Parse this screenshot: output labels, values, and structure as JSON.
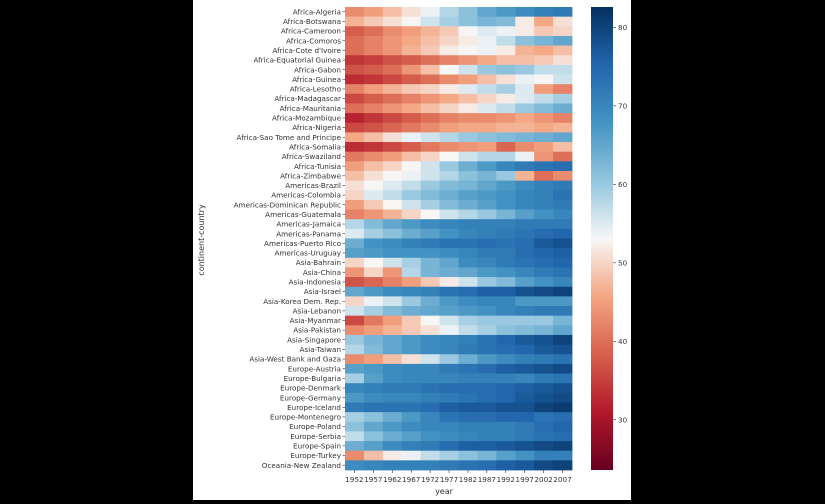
{
  "chart_data": {
    "type": "heatmap",
    "title": "",
    "xlabel": "year",
    "ylabel": "continent-country",
    "x": [
      "1952",
      "1957",
      "1962",
      "1967",
      "1972",
      "1977",
      "1982",
      "1987",
      "1992",
      "1997",
      "2002",
      "2007"
    ],
    "y_tick_labels": [
      "Africa-Algeria",
      "Africa-Botswana",
      "Africa-Cameroon",
      "Africa-Comoros",
      "Africa-Cote d'Ivoire",
      "Africa-Equatorial Guinea",
      "Africa-Gabon",
      "Africa-Guinea",
      "Africa-Lesotho",
      "Africa-Madagascar",
      "Africa-Mauritania",
      "Africa-Mozambique",
      "Africa-Nigeria",
      "Africa-Sao Tome and Principe",
      "Africa-Somalia",
      "Africa-Swaziland",
      "Africa-Tunisia",
      "Africa-Zimbabwe",
      "Americas-Brazil",
      "Americas-Colombia",
      "Americas-Dominican Republic",
      "Americas-Guatemala",
      "Americas-Jamaica",
      "Americas-Panama",
      "Americas-Puerto Rico",
      "Americas-Uruguay",
      "Asia-Bahrain",
      "Asia-China",
      "Asia-Indonesia",
      "Asia-Israel",
      "Asia-Korea Dem. Rep.",
      "Asia-Lebanon",
      "Asia-Myanmar",
      "Asia-Pakistan",
      "Asia-Singapore",
      "Asia-Taiwan",
      "Asia-West Bank and Gaza",
      "Europe-Austria",
      "Europe-Bulgaria",
      "Europe-Denmark",
      "Europe-Germany",
      "Europe-Iceland",
      "Europe-Montenegro",
      "Europe-Poland",
      "Europe-Serbia",
      "Europe-Spain",
      "Europe-Turkey",
      "Oceania-New Zealand"
    ],
    "rows": [
      {
        "label": "Africa-Algeria",
        "values": [
          43,
          45,
          48,
          51,
          54,
          58,
          61,
          65,
          67,
          69,
          71,
          72
        ]
      },
      {
        "label": "Africa-Botswana",
        "values": [
          47,
          49,
          51,
          53,
          56,
          59,
          61,
          63,
          62,
          52,
          46,
          51
        ]
      },
      {
        "label": "Africa-Cameroon",
        "values": [
          38,
          40,
          43,
          45,
          47,
          49,
          53,
          55,
          54,
          52,
          49,
          50
        ]
      },
      {
        "label": "Africa-Comoros",
        "values": [
          40,
          42,
          44,
          46,
          48,
          50,
          52,
          54,
          57,
          61,
          63,
          65
        ]
      },
      {
        "label": "Africa-Cote d'Ivoire",
        "values": [
          40,
          42,
          44,
          47,
          49,
          52,
          53,
          54,
          52,
          47,
          46,
          48
        ]
      },
      {
        "label": "Africa-Equatorial Guinea",
        "values": [
          34,
          35,
          37,
          38,
          40,
          42,
          44,
          46,
          48,
          48,
          49,
          51
        ]
      },
      {
        "label": "Africa-Gabon",
        "values": [
          37,
          38,
          40,
          44,
          48,
          53,
          56,
          60,
          61,
          60,
          57,
          57
        ]
      },
      {
        "label": "Africa-Guinea",
        "values": [
          33,
          34,
          36,
          38,
          40,
          43,
          45,
          48,
          51,
          54,
          53,
          56
        ]
      },
      {
        "label": "Africa-Lesotho",
        "values": [
          42,
          45,
          47,
          49,
          50,
          52,
          55,
          57,
          59,
          55,
          45,
          42
        ]
      },
      {
        "label": "Africa-Madagascar",
        "values": [
          36,
          38,
          40,
          42,
          44,
          46,
          48,
          50,
          52,
          55,
          57,
          59
        ]
      },
      {
        "label": "Africa-Mauritania",
        "values": [
          40,
          42,
          44,
          46,
          48,
          50,
          52,
          55,
          57,
          60,
          62,
          64
        ]
      },
      {
        "label": "Africa-Mozambique",
        "values": [
          32,
          34,
          36,
          38,
          40,
          42,
          43,
          43,
          44,
          46,
          44,
          42
        ]
      },
      {
        "label": "Africa-Nigeria",
        "values": [
          36,
          37,
          39,
          41,
          43,
          45,
          46,
          46,
          47,
          47,
          46,
          47
        ]
      },
      {
        "label": "Africa-Sao Tome and Principe",
        "values": [
          46,
          48,
          51,
          54,
          56,
          58,
          60,
          61,
          62,
          63,
          64,
          65
        ]
      },
      {
        "label": "Africa-Somalia",
        "values": [
          33,
          34,
          36,
          38,
          41,
          43,
          44,
          45,
          39,
          43,
          45,
          48
        ]
      },
      {
        "label": "Africa-Swaziland",
        "values": [
          41,
          43,
          45,
          48,
          50,
          53,
          56,
          58,
          58,
          54,
          44,
          40
        ]
      },
      {
        "label": "Africa-Tunisia",
        "values": [
          45,
          48,
          50,
          53,
          56,
          60,
          64,
          67,
          70,
          72,
          73,
          74
        ]
      },
      {
        "label": "Africa-Zimbabwe",
        "values": [
          48,
          51,
          53,
          54,
          56,
          58,
          61,
          63,
          60,
          47,
          40,
          43
        ]
      },
      {
        "label": "Americas-Brazil",
        "values": [
          51,
          53,
          55,
          57,
          60,
          62,
          63,
          65,
          67,
          69,
          71,
          72
        ]
      },
      {
        "label": "Americas-Colombia",
        "values": [
          50,
          55,
          57,
          60,
          62,
          64,
          66,
          67,
          68,
          70,
          71,
          73
        ]
      },
      {
        "label": "Americas-Dominican Republic",
        "values": [
          45,
          49,
          53,
          56,
          59,
          62,
          64,
          66,
          68,
          70,
          71,
          72
        ]
      },
      {
        "label": "Americas-Guatemala",
        "values": [
          42,
          44,
          47,
          50,
          53,
          56,
          58,
          60,
          63,
          66,
          68,
          70
        ]
      },
      {
        "label": "Americas-Jamaica",
        "values": [
          58,
          62,
          65,
          67,
          69,
          70,
          71,
          71,
          71,
          72,
          72,
          72
        ]
      },
      {
        "label": "Americas-Panama",
        "values": [
          55,
          59,
          61,
          64,
          66,
          68,
          70,
          71,
          72,
          73,
          74,
          75
        ]
      },
      {
        "label": "Americas-Puerto Rico",
        "values": [
          64,
          68,
          69,
          71,
          72,
          73,
          73,
          74,
          73,
          74,
          77,
          78
        ]
      },
      {
        "label": "Americas-Uruguay",
        "values": [
          66,
          67,
          68,
          68,
          68,
          69,
          70,
          72,
          72,
          74,
          75,
          76
        ]
      },
      {
        "label": "Asia-Bahrain",
        "values": [
          50,
          53,
          56,
          59,
          63,
          65,
          69,
          70,
          72,
          73,
          74,
          75
        ]
      },
      {
        "label": "Asia-China",
        "values": [
          44,
          50,
          44,
          58,
          63,
          64,
          65,
          67,
          68,
          70,
          72,
          73
        ]
      },
      {
        "label": "Asia-Indonesia",
        "values": [
          37,
          39,
          42,
          45,
          49,
          52,
          56,
          60,
          62,
          66,
          68,
          70
        ]
      },
      {
        "label": "Asia-Israel",
        "values": [
          65,
          67,
          69,
          70,
          71,
          73,
          74,
          76,
          76,
          78,
          79,
          80
        ]
      },
      {
        "label": "Asia-Korea Dem. Rep.",
        "values": [
          50,
          54,
          56,
          60,
          64,
          67,
          69,
          70,
          70,
          67,
          67,
          67
        ]
      },
      {
        "label": "Asia-Lebanon",
        "values": [
          56,
          59,
          62,
          64,
          65,
          66,
          67,
          68,
          70,
          71,
          72,
          72
        ]
      },
      {
        "label": "Asia-Myanmar",
        "values": [
          36,
          41,
          45,
          49,
          53,
          56,
          59,
          60,
          60,
          60,
          60,
          63
        ]
      },
      {
        "label": "Asia-Pakistan",
        "values": [
          43,
          45,
          47,
          49,
          51,
          54,
          57,
          59,
          61,
          62,
          63,
          65
        ]
      },
      {
        "label": "Asia-Singapore",
        "values": [
          60,
          63,
          65,
          67,
          69,
          70,
          71,
          73,
          75,
          77,
          78,
          80
        ]
      },
      {
        "label": "Asia-Taiwan",
        "values": [
          58,
          62,
          65,
          67,
          69,
          70,
          72,
          73,
          74,
          75,
          77,
          78
        ]
      },
      {
        "label": "Asia-West Bank and Gaza",
        "values": [
          43,
          45,
          48,
          51,
          56,
          60,
          64,
          67,
          69,
          71,
          72,
          73
        ]
      },
      {
        "label": "Europe-Austria",
        "values": [
          66,
          67,
          69,
          70,
          70,
          72,
          73,
          74,
          76,
          77,
          78,
          79
        ]
      },
      {
        "label": "Europe-Bulgaria",
        "values": [
          59,
          66,
          69,
          70,
          70,
          70,
          71,
          71,
          71,
          70,
          72,
          73
        ]
      },
      {
        "label": "Europe-Denmark",
        "values": [
          70,
          71,
          72,
          72,
          73,
          74,
          74,
          74,
          75,
          76,
          77,
          78
        ]
      },
      {
        "label": "Europe-Germany",
        "values": [
          67,
          69,
          70,
          70,
          71,
          72,
          73,
          74,
          75,
          77,
          78,
          79
        ]
      },
      {
        "label": "Europe-Iceland",
        "values": [
          72,
          73,
          73,
          73,
          74,
          76,
          77,
          77,
          78,
          78,
          80,
          81
        ]
      },
      {
        "label": "Europe-Montenegro",
        "values": [
          59,
          61,
          64,
          67,
          70,
          73,
          74,
          74,
          75,
          75,
          73,
          74
        ]
      },
      {
        "label": "Europe-Poland",
        "values": [
          61,
          65,
          67,
          69,
          70,
          70,
          71,
          71,
          71,
          72,
          74,
          75
        ]
      },
      {
        "label": "Europe-Serbia",
        "values": [
          57,
          61,
          64,
          66,
          68,
          69,
          70,
          71,
          71,
          72,
          73,
          74
        ]
      },
      {
        "label": "Europe-Spain",
        "values": [
          64,
          66,
          69,
          71,
          72,
          74,
          76,
          76,
          77,
          78,
          79,
          80
        ]
      },
      {
        "label": "Europe-Turkey",
        "values": [
          43,
          48,
          52,
          54,
          57,
          59,
          61,
          63,
          66,
          68,
          71,
          71
        ]
      },
      {
        "label": "Oceania-New Zealand",
        "values": [
          69,
          70,
          71,
          71,
          71,
          72,
          73,
          74,
          76,
          77,
          79,
          80
        ]
      }
    ],
    "colorbar": {
      "min": 23.6,
      "max": 82.6,
      "ticks": [
        30,
        40,
        50,
        60,
        70,
        80
      ],
      "colormap": "RdBu"
    },
    "grid": false,
    "legend": "colorbar-right"
  }
}
